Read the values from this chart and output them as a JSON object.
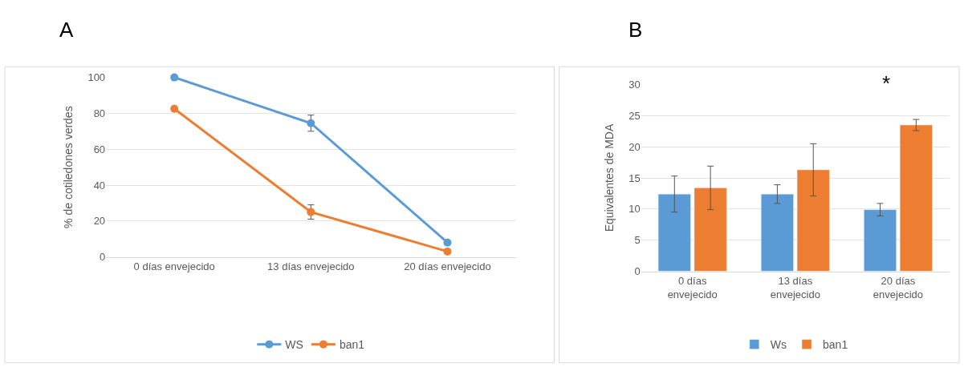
{
  "chart_data": [
    {
      "type": "line",
      "title": "A",
      "ylabel": "% de cotiledones verdes",
      "categories": [
        "0 días envejecido",
        "13 días envejecido",
        "20 días envejecido"
      ],
      "series": [
        {
          "name": "WS",
          "color": "#5b9bd5",
          "values": [
            100,
            74.5,
            8
          ],
          "errors": [
            null,
            4.5,
            null
          ]
        },
        {
          "name": "ban1",
          "color": "#ed7d31",
          "values": [
            82.5,
            25,
            3
          ],
          "errors": [
            null,
            4,
            null
          ]
        }
      ],
      "ylim": [
        0,
        100
      ],
      "yticks": [
        0,
        20,
        40,
        60,
        80,
        100
      ],
      "grid": "y",
      "legend": "bottom",
      "marker": "circle"
    },
    {
      "type": "bar",
      "title": "B",
      "ylabel": "Equivalentes de MDA",
      "categories": [
        "0 días envejecido",
        "13 días envejecido",
        "20 días envejecido"
      ],
      "series": [
        {
          "name": "Ws",
          "color": "#5b9bd5",
          "values": [
            12.4,
            12.4,
            9.9
          ],
          "errors": [
            2.9,
            1.5,
            1
          ]
        },
        {
          "name": "ban1",
          "color": "#ed7d31",
          "values": [
            13.4,
            16.3,
            23.5
          ],
          "errors": [
            3.5,
            4.2,
            0.9
          ]
        }
      ],
      "ylim": [
        0,
        30
      ],
      "yticks": [
        0,
        5,
        10,
        15,
        20,
        25,
        30
      ],
      "grid": "y",
      "legend": "bottom",
      "annotations": [
        "*"
      ]
    }
  ]
}
